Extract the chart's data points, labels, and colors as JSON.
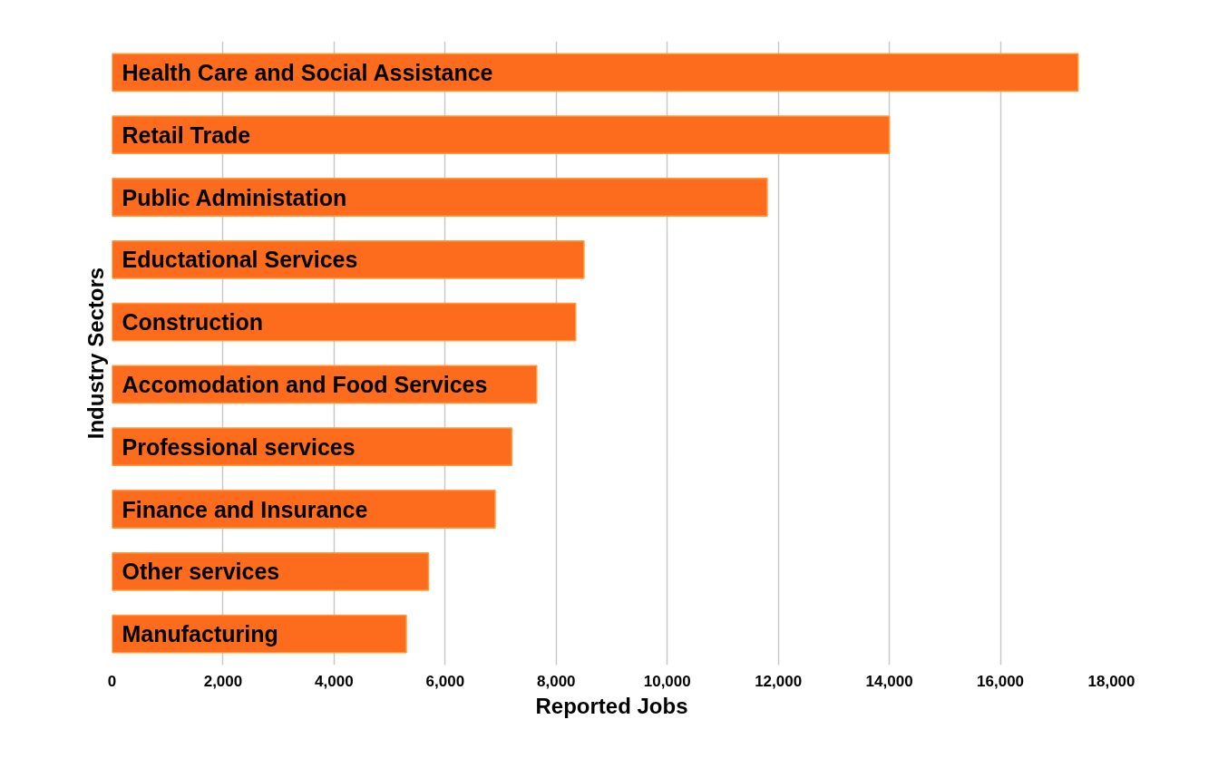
{
  "chart_data": {
    "type": "bar",
    "orientation": "horizontal",
    "xlabel": "Reported Jobs",
    "ylabel": "Industry Sectors",
    "categories": [
      "Health Care and Social Assistance",
      "Retail Trade",
      "Public Administation",
      "Eductational Services",
      "Construction",
      "Accomodation and Food Services",
      "Professional services",
      "Finance and Insurance",
      "Other services",
      "Manufacturing"
    ],
    "values": [
      17400,
      14000,
      11800,
      8500,
      8350,
      7650,
      7200,
      6900,
      5700,
      5300
    ],
    "color": "#fc6c1c",
    "xlim": [
      0,
      18000
    ],
    "xticks": [
      {
        "value": 0,
        "label": "0"
      },
      {
        "value": 2000,
        "label": "2,000"
      },
      {
        "value": 4000,
        "label": "4,000"
      },
      {
        "value": 6000,
        "label": "6,000"
      },
      {
        "value": 8000,
        "label": "8,000"
      },
      {
        "value": 10000,
        "label": "10,000"
      },
      {
        "value": 12000,
        "label": "12,000"
      },
      {
        "value": 14000,
        "label": "14,000"
      },
      {
        "value": 16000,
        "label": "16,000"
      },
      {
        "value": 18000,
        "label": "18,000"
      }
    ],
    "grid": "x",
    "tick_labels": "x"
  }
}
